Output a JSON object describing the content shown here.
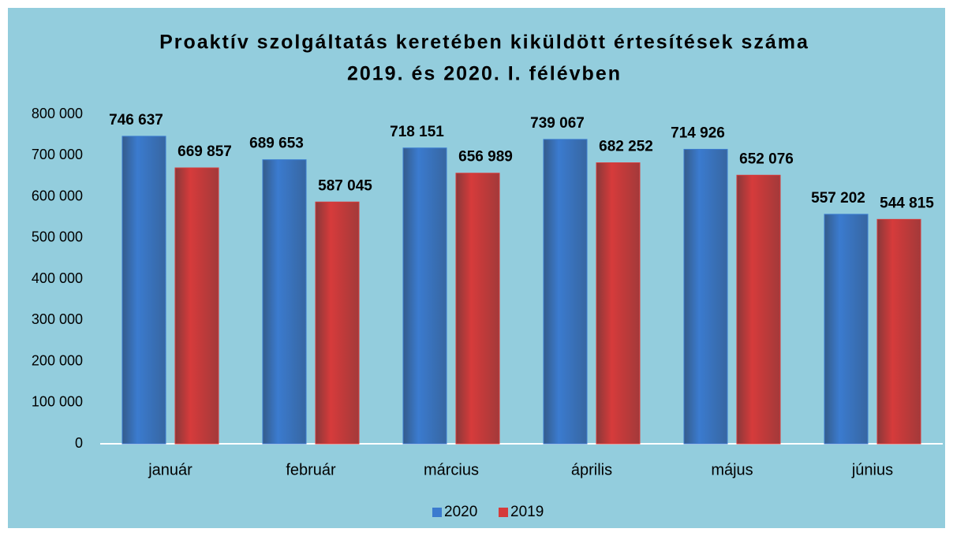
{
  "chart_data": {
    "type": "bar",
    "title": [
      "Proaktív szolgáltatás keretében kiküldött értesítések száma",
      "2019. és 2020. I. félévben"
    ],
    "categories": [
      "január",
      "február",
      "március",
      "április",
      "május",
      "június"
    ],
    "series": [
      {
        "name": "2020",
        "color": "#3b7bcf",
        "values": [
          746637,
          689653,
          718151,
          739067,
          714926,
          557202
        ],
        "value_labels": [
          "746 637",
          "689 653",
          "718 151",
          "739 067",
          "714 926",
          "557 202"
        ]
      },
      {
        "name": "2019",
        "color": "#d63b3b",
        "values": [
          669857,
          587045,
          656989,
          682252,
          652076,
          544815
        ],
        "value_labels": [
          "669 857",
          "587 045",
          "656 989",
          "682 252",
          "652 076",
          "544 815"
        ]
      }
    ],
    "ylim": [
      0,
      800000
    ],
    "yticks": [
      0,
      {
        "value": 100000,
        "label": "100 000"
      },
      {
        "value": 200000,
        "label": "200 000"
      },
      {
        "value": 300000,
        "label": "300 000"
      },
      {
        "value": 400000,
        "label": "400 000"
      },
      {
        "value": 500000,
        "label": "500 000"
      },
      {
        "value": 600000,
        "label": "600 000"
      },
      {
        "value": 700000,
        "label": "700 000"
      },
      {
        "value": 800000,
        "label": "800 000"
      }
    ],
    "grid": false,
    "legend": "bottom"
  }
}
